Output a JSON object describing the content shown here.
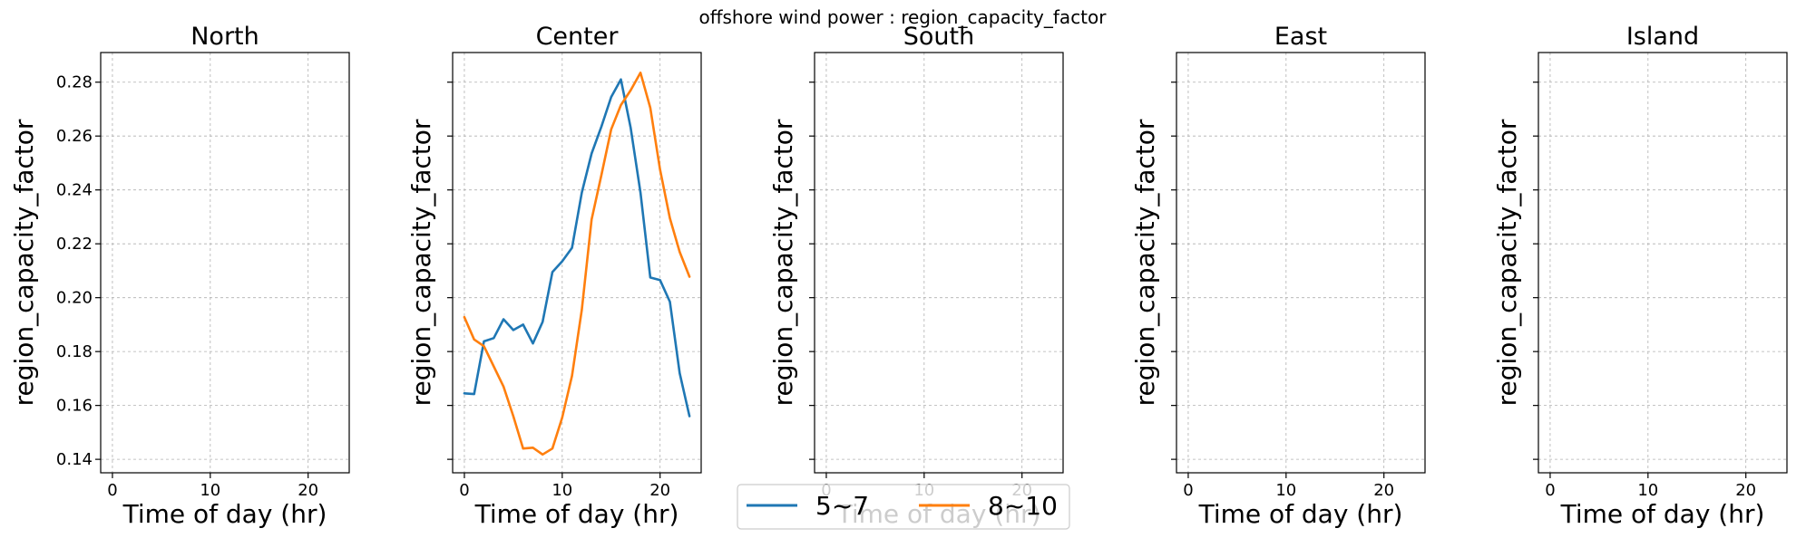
{
  "figure": {
    "suptitle": "offshore wind power : region_capacity_factor"
  },
  "chart_data": {
    "type": "line",
    "title": "offshore wind power : region_capacity_factor",
    "xlabel": "Time of day (hr)",
    "ylabel": "region_capacity_factor",
    "xlim": [
      -1.2,
      24.2
    ],
    "ylim": [
      0.135,
      0.291
    ],
    "xticks": [
      0,
      10,
      20
    ],
    "xtick_labels": [
      "0",
      "10",
      "20"
    ],
    "yticks": [
      0.14,
      0.16,
      0.18,
      0.2,
      0.22,
      0.24,
      0.26,
      0.28
    ],
    "ytick_labels": [
      "0.14",
      "0.16",
      "0.18",
      "0.20",
      "0.22",
      "0.24",
      "0.26",
      "0.28"
    ],
    "grid": true,
    "legend": {
      "placement": "bottom-center",
      "entries": [
        "5~7",
        "8~10"
      ]
    },
    "colors": {
      "series_1": "#1f77b4",
      "series_2": "#ff7f0e"
    },
    "panels": [
      {
        "title": "North",
        "series": []
      },
      {
        "title": "Center",
        "series": [
          {
            "name": "5~7",
            "x": [
              0,
              1,
              2,
              3,
              4,
              5,
              6,
              7,
              8,
              9,
              10,
              11,
              12,
              13,
              14,
              15,
              16,
              17,
              18,
              19,
              20,
              21,
              22,
              23
            ],
            "values": [
              0.1645,
              0.1642,
              0.1838,
              0.185,
              0.192,
              0.188,
              0.19,
              0.183,
              0.191,
              0.2095,
              0.2135,
              0.2185,
              0.239,
              0.2535,
              0.2635,
              0.2745,
              0.281,
              0.263,
              0.239,
              0.2075,
              0.2065,
              0.1985,
              0.172,
              0.156
            ]
          },
          {
            "name": "8~10",
            "x": [
              0,
              1,
              2,
              3,
              4,
              5,
              6,
              7,
              8,
              9,
              10,
              11,
              12,
              13,
              14,
              15,
              16,
              17,
              18,
              19,
              20,
              21,
              22,
              23
            ],
            "values": [
              0.1928,
              0.1845,
              0.182,
              0.1745,
              0.167,
              0.156,
              0.144,
              0.1443,
              0.1418,
              0.144,
              0.1555,
              0.171,
              0.1955,
              0.229,
              0.2455,
              0.2625,
              0.2715,
              0.277,
              0.2835,
              0.2705,
              0.2475,
              0.2295,
              0.217,
              0.2078
            ]
          }
        ]
      },
      {
        "title": "South",
        "series": []
      },
      {
        "title": "East",
        "series": []
      },
      {
        "title": "Island",
        "series": []
      }
    ]
  }
}
